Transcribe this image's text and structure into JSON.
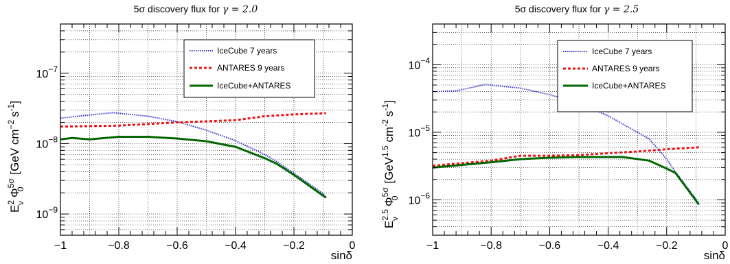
{
  "chart_data": [
    {
      "type": "line",
      "title_pre": "5σ discovery flux for ",
      "title_gamma": "γ = 2.0",
      "xlabel": "sinδ",
      "ylabel": "E_ν^2 Φ_0^5σ [GeV cm^-2 s^-1]",
      "ylabel_parts": {
        "E": "E",
        "E_sup": "2",
        "E_sub": "ν",
        "Phi": "Φ",
        "Phi_sup": "5σ",
        "Phi_sub": "0",
        "unit_open": "[GeV cm",
        "unit_exp1": "−2",
        "unit_mid": "s",
        "unit_exp2": "-1",
        "unit_close": "]"
      },
      "xlim": [
        -1,
        0
      ],
      "ylim": [
        5e-10,
        5e-07
      ],
      "yscale": "log",
      "grid": true,
      "xticks": [
        "−1",
        "−0.8",
        "−0.6",
        "−0.4",
        "−0.2",
        "0"
      ],
      "xtick_values": [
        -1,
        -0.8,
        -0.6,
        -0.4,
        -0.2,
        0
      ],
      "yticks": [
        {
          "value": 1e-09,
          "mantissa": "10",
          "exp": "−9"
        },
        {
          "value": 1e-08,
          "mantissa": "10",
          "exp": "−8"
        },
        {
          "value": 1e-07,
          "mantissa": "10",
          "exp": "−7"
        }
      ],
      "series": [
        {
          "name": "IceCube 7 years",
          "color": "#3333cc",
          "style": "dotted",
          "x": [
            -1.0,
            -0.9,
            -0.82,
            -0.7,
            -0.6,
            -0.5,
            -0.4,
            -0.3,
            -0.26,
            -0.2,
            -0.1,
            -0.09
          ],
          "y": [
            2.3e-08,
            2.55e-08,
            2.75e-08,
            2.45e-08,
            2.05e-08,
            1.55e-08,
            1.1e-08,
            7e-09,
            5.6e-09,
            3.8e-09,
            1.95e-09,
            1.7e-09
          ]
        },
        {
          "name": "ANTARES 9 years",
          "color": "#ee1111",
          "style": "dashed",
          "x": [
            -1.0,
            -0.98,
            -0.8,
            -0.6,
            -0.4,
            -0.3,
            -0.2,
            -0.09
          ],
          "y": [
            1.75e-08,
            1.75e-08,
            1.8e-08,
            2e-08,
            2.15e-08,
            2.45e-08,
            2.6e-08,
            2.7e-08
          ]
        },
        {
          "name": "IceCube+ANTARES",
          "color": "#006600",
          "style": "solid",
          "x": [
            -1.0,
            -0.96,
            -0.9,
            -0.8,
            -0.7,
            -0.6,
            -0.5,
            -0.4,
            -0.3,
            -0.26,
            -0.2,
            -0.09
          ],
          "y": [
            1.15e-08,
            1.2e-08,
            1.15e-08,
            1.25e-08,
            1.25e-08,
            1.18e-08,
            1.08e-08,
            9e-09,
            6.2e-09,
            5.2e-09,
            3.6e-09,
            1.7e-09
          ]
        }
      ]
    },
    {
      "type": "line",
      "title_pre": "5σ discovery flux for ",
      "title_gamma": "γ = 2.5",
      "xlabel": "sinδ",
      "ylabel": "E_ν^2.5 Φ_0^5σ [GeV^1.5 cm^-2 s^-1]",
      "ylabel_parts": {
        "E": "E",
        "E_sup": "2.5",
        "E_sub": "ν",
        "Phi": "Φ",
        "Phi_sup": "5σ",
        "Phi_sub": "0",
        "unit_open": "[GeV",
        "unit_exp0": "1.5",
        "unit_mid0": " cm",
        "unit_exp1": "-2",
        "unit_mid": "s",
        "unit_exp2": "-1",
        "unit_close": "]"
      },
      "xlim": [
        -1,
        0
      ],
      "ylim": [
        3e-07,
        0.0004
      ],
      "yscale": "log",
      "grid": true,
      "xticks": [
        "−1",
        "−0.8",
        "−0.6",
        "−0.4",
        "−0.2",
        "0"
      ],
      "xtick_values": [
        -1,
        -0.8,
        -0.6,
        -0.4,
        -0.2,
        0
      ],
      "yticks": [
        {
          "value": 1e-06,
          "mantissa": "10",
          "exp": "−6"
        },
        {
          "value": 1e-05,
          "mantissa": "10",
          "exp": "−5"
        },
        {
          "value": 0.0001,
          "mantissa": "10",
          "exp": "−4"
        }
      ],
      "series": [
        {
          "name": "IceCube 7 years",
          "color": "#3333cc",
          "style": "dotted",
          "x": [
            -1.0,
            -0.92,
            -0.82,
            -0.7,
            -0.6,
            -0.5,
            -0.4,
            -0.3,
            -0.26,
            -0.2,
            -0.17,
            -0.09
          ],
          "y": [
            4e-05,
            4.1e-05,
            5.1e-05,
            4.5e-05,
            3.6e-05,
            2.7e-05,
            1.75e-05,
            1e-05,
            8e-06,
            4e-06,
            2.6e-06,
            9e-07
          ]
        },
        {
          "name": "ANTARES 9 years",
          "color": "#ee1111",
          "style": "dashed",
          "x": [
            -1.0,
            -0.8,
            -0.7,
            -0.6,
            -0.5,
            -0.4,
            -0.3,
            -0.2,
            -0.09
          ],
          "y": [
            3.2e-06,
            3.8e-06,
            4.5e-06,
            4.5e-06,
            4.6e-06,
            4.9e-06,
            5.2e-06,
            5.6e-06,
            6e-06
          ]
        },
        {
          "name": "IceCube+ANTARES",
          "color": "#006600",
          "style": "solid",
          "x": [
            -1.0,
            -0.8,
            -0.7,
            -0.6,
            -0.5,
            -0.4,
            -0.35,
            -0.26,
            -0.2,
            -0.17,
            -0.09
          ],
          "y": [
            3e-06,
            3.6e-06,
            4e-06,
            4.2e-06,
            4.3e-06,
            4.3e-06,
            4.3e-06,
            3.8e-06,
            2.9e-06,
            2.5e-06,
            8.5e-07
          ]
        }
      ]
    }
  ]
}
